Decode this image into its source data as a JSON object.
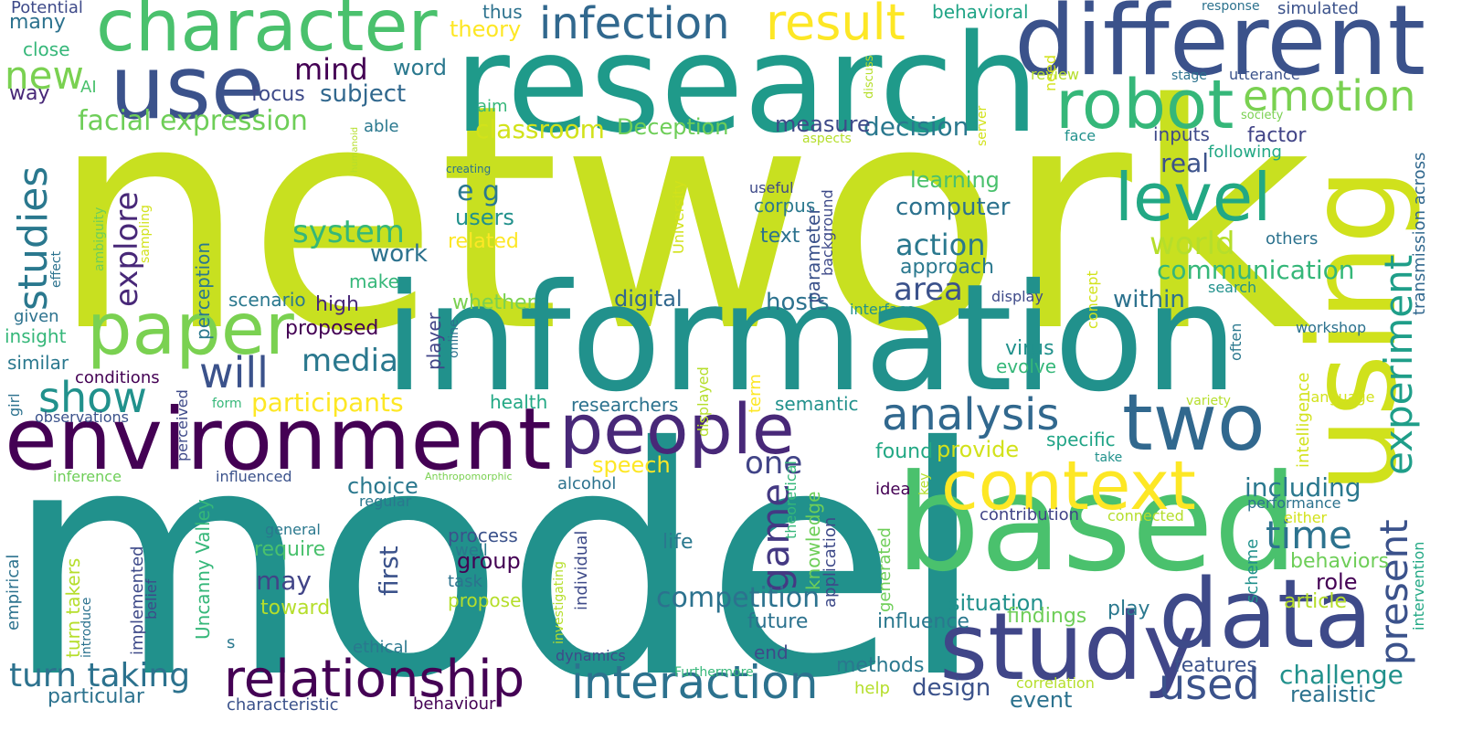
{
  "words": [
    {
      "text": "network",
      "color": "#c8e020"
    },
    {
      "text": "model",
      "color": "#21918c"
    },
    {
      "text": "research",
      "color": "#1f9a8a"
    },
    {
      "text": "information",
      "color": "#21918c"
    },
    {
      "text": "using",
      "color": "#d0e11c"
    },
    {
      "text": "different",
      "color": "#3b528b"
    },
    {
      "text": "based",
      "color": "#4ac16d"
    },
    {
      "text": "study",
      "color": "#404688"
    },
    {
      "text": "data",
      "color": "#3e4a89"
    },
    {
      "text": "environment",
      "color": "#440154"
    },
    {
      "text": "character",
      "color": "#4ac16d"
    },
    {
      "text": "use",
      "color": "#3b528b"
    },
    {
      "text": "people",
      "color": "#482878"
    },
    {
      "text": "two",
      "color": "#31688e"
    },
    {
      "text": "context",
      "color": "#fde725"
    },
    {
      "text": "robot",
      "color": "#35b779"
    },
    {
      "text": "paper",
      "color": "#7ad151"
    },
    {
      "text": "relationship",
      "color": "#440154"
    },
    {
      "text": "interaction",
      "color": "#2c728e"
    },
    {
      "text": "level",
      "color": "#22a884"
    },
    {
      "text": "infection",
      "color": "#31688e"
    },
    {
      "text": "result",
      "color": "#fde725"
    },
    {
      "text": "emotion",
      "color": "#7ad151"
    },
    {
      "text": "analysis",
      "color": "#31688e"
    },
    {
      "text": "studies",
      "color": "#2a788e"
    },
    {
      "text": "experiment",
      "color": "#1f9e89"
    },
    {
      "text": "present",
      "color": "#3b528b"
    },
    {
      "text": "used",
      "color": "#3b528b"
    },
    {
      "text": "show",
      "color": "#21918c"
    },
    {
      "text": "will",
      "color": "#3b528b"
    },
    {
      "text": "new",
      "color": "#7ad151"
    },
    {
      "text": "turn taking",
      "color": "#2c728e"
    },
    {
      "text": "time",
      "color": "#2c728e"
    },
    {
      "text": "facial expression",
      "color": "#6ece58"
    },
    {
      "text": "game",
      "color": "#443983"
    },
    {
      "text": "media",
      "color": "#2a788e"
    },
    {
      "text": "participants",
      "color": "#fde725"
    },
    {
      "text": "system",
      "color": "#35b779"
    },
    {
      "text": "mind",
      "color": "#440154"
    },
    {
      "text": "competition",
      "color": "#2c728e"
    },
    {
      "text": "action",
      "color": "#2a788e"
    },
    {
      "text": "world",
      "color": "#b5de2b"
    },
    {
      "text": "communication",
      "color": "#35b779"
    },
    {
      "text": "including",
      "color": "#2a788e"
    },
    {
      "text": "challenge",
      "color": "#21918c"
    },
    {
      "text": "design",
      "color": "#3b528b"
    },
    {
      "text": "explore",
      "color": "#482878"
    },
    {
      "text": "one",
      "color": "#414487"
    },
    {
      "text": "area",
      "color": "#3b528b"
    },
    {
      "text": "classroom",
      "color": "#d2e21b"
    },
    {
      "text": "Deception",
      "color": "#6ece58"
    },
    {
      "text": "decision",
      "color": "#2a788e"
    },
    {
      "text": "subject",
      "color": "#31688e"
    },
    {
      "text": "focus",
      "color": "#3e4a89"
    },
    {
      "text": "word",
      "color": "#2a788e"
    },
    {
      "text": "theory",
      "color": "#fde725"
    },
    {
      "text": "thus",
      "color": "#2c728e"
    },
    {
      "text": "behavioral",
      "color": "#20a486"
    },
    {
      "text": "Potential",
      "color": "#3e4a89"
    },
    {
      "text": "many",
      "color": "#2c728e"
    },
    {
      "text": "close",
      "color": "#35b779"
    },
    {
      "text": "AI",
      "color": "#4ac16d"
    },
    {
      "text": "way",
      "color": "#482878"
    },
    {
      "text": "aim",
      "color": "#35b779"
    },
    {
      "text": "able",
      "color": "#2a788e"
    },
    {
      "text": "measure",
      "color": "#3e4a89"
    },
    {
      "text": "e g",
      "color": "#2a788e"
    },
    {
      "text": "users",
      "color": "#21918c"
    },
    {
      "text": "related",
      "color": "#fde725"
    },
    {
      "text": "real",
      "color": "#3b528b"
    },
    {
      "text": "learning",
      "color": "#4ac16d"
    },
    {
      "text": "computer",
      "color": "#2c728e"
    },
    {
      "text": "approach",
      "color": "#2a788e"
    },
    {
      "text": "work",
      "color": "#2c728e"
    },
    {
      "text": "make",
      "color": "#35b779"
    },
    {
      "text": "scenario",
      "color": "#2a788e"
    },
    {
      "text": "high",
      "color": "#482878"
    },
    {
      "text": "proposed",
      "color": "#440154"
    },
    {
      "text": "whether",
      "color": "#7ad151"
    },
    {
      "text": "digital",
      "color": "#31688e"
    },
    {
      "text": "hosts",
      "color": "#2c728e"
    },
    {
      "text": "within",
      "color": "#2c728e"
    },
    {
      "text": "virus",
      "color": "#21918c"
    },
    {
      "text": "evolve",
      "color": "#35b779"
    },
    {
      "text": "health",
      "color": "#22a884"
    },
    {
      "text": "researchers",
      "color": "#2c728e"
    },
    {
      "text": "semantic",
      "color": "#21918c"
    },
    {
      "text": "found",
      "color": "#22a884"
    },
    {
      "text": "provide",
      "color": "#d2e21b"
    },
    {
      "text": "specific",
      "color": "#20a486"
    },
    {
      "text": "speech",
      "color": "#fde725"
    },
    {
      "text": "choice",
      "color": "#2a788e"
    },
    {
      "text": "first",
      "color": "#3b528b"
    },
    {
      "text": "may",
      "color": "#414487"
    },
    {
      "text": "require",
      "color": "#4ac16d"
    },
    {
      "text": "toward",
      "color": "#b5de2b"
    },
    {
      "text": "general",
      "color": "#2a788e"
    },
    {
      "text": "process",
      "color": "#3b528b"
    },
    {
      "text": "well",
      "color": "#2a788e"
    },
    {
      "text": "group",
      "color": "#440154"
    },
    {
      "text": "task",
      "color": "#2c728e"
    },
    {
      "text": "propose",
      "color": "#b5de2b"
    },
    {
      "text": "life",
      "color": "#2a788e"
    },
    {
      "text": "future",
      "color": "#2c728e"
    },
    {
      "text": "end",
      "color": "#3e4a89"
    },
    {
      "text": "methods",
      "color": "#2a788e"
    },
    {
      "text": "help",
      "color": "#b5de2b"
    },
    {
      "text": "situation",
      "color": "#21918c"
    },
    {
      "text": "influence",
      "color": "#2a788e"
    },
    {
      "text": "findings",
      "color": "#6ece58"
    },
    {
      "text": "play",
      "color": "#2a788e"
    },
    {
      "text": "role",
      "color": "#440154"
    },
    {
      "text": "behaviors",
      "color": "#6ece58"
    },
    {
      "text": "article",
      "color": "#b5de2b"
    },
    {
      "text": "features",
      "color": "#3b528b"
    },
    {
      "text": "event",
      "color": "#2c728e"
    },
    {
      "text": "realistic",
      "color": "#2c728e"
    },
    {
      "text": "correlation",
      "color": "#b5de2b"
    },
    {
      "text": "contribution",
      "color": "#414487"
    },
    {
      "text": "connected",
      "color": "#b5de2b"
    },
    {
      "text": "performance",
      "color": "#2c728e"
    },
    {
      "text": "either",
      "color": "#d2e21b"
    },
    {
      "text": "idea",
      "color": "#440154"
    },
    {
      "text": "key",
      "color": "#b5de2b"
    },
    {
      "text": "particular",
      "color": "#2c728e"
    },
    {
      "text": "characteristic",
      "color": "#3b528b"
    },
    {
      "text": "behaviour",
      "color": "#440154"
    },
    {
      "text": "ethical",
      "color": "#2a788e"
    },
    {
      "text": "dynamics",
      "color": "#3e4a89"
    },
    {
      "text": "Furthermore",
      "color": "#35b779"
    },
    {
      "text": "s",
      "color": "#2a788e"
    },
    {
      "text": "alcohol",
      "color": "#2c728e"
    },
    {
      "text": "given",
      "color": "#2c728e"
    },
    {
      "text": "insight",
      "color": "#35b779"
    },
    {
      "text": "similar",
      "color": "#2a788e"
    },
    {
      "text": "conditions",
      "color": "#440154"
    },
    {
      "text": "girl",
      "color": "#2c728e"
    },
    {
      "text": "observations",
      "color": "#3b528b"
    },
    {
      "text": "form",
      "color": "#35b779"
    },
    {
      "text": "inference",
      "color": "#6ece58"
    },
    {
      "text": "influenced",
      "color": "#3b528b"
    },
    {
      "text": "Anthropomorphic",
      "color": "#7ad151"
    },
    {
      "text": "regular",
      "color": "#2a788e"
    },
    {
      "text": "creating",
      "color": "#2c728e"
    },
    {
      "text": "useful",
      "color": "#3e4a89"
    },
    {
      "text": "corpus",
      "color": "#2a788e"
    },
    {
      "text": "text",
      "color": "#2c728e"
    },
    {
      "text": "inputs",
      "color": "#3e4a89"
    },
    {
      "text": "factor",
      "color": "#414487"
    },
    {
      "text": "following",
      "color": "#22a884"
    },
    {
      "text": "face",
      "color": "#21918c"
    },
    {
      "text": "aspects",
      "color": "#b5de2b"
    },
    {
      "text": "others",
      "color": "#2c728e"
    },
    {
      "text": "display",
      "color": "#3e4a89"
    },
    {
      "text": "interface",
      "color": "#21918c"
    },
    {
      "text": "search",
      "color": "#21918c"
    },
    {
      "text": "workshop",
      "color": "#2c728e"
    },
    {
      "text": "variety",
      "color": "#b5de2b"
    },
    {
      "text": "language",
      "color": "#d2e21b"
    },
    {
      "text": "take",
      "color": "#21918c"
    },
    {
      "text": "review",
      "color": "#b5de2b"
    },
    {
      "text": "stage",
      "color": "#2c728e"
    },
    {
      "text": "utterance",
      "color": "#3b528b"
    },
    {
      "text": "society",
      "color": "#7ad151"
    },
    {
      "text": "response",
      "color": "#2c728e"
    },
    {
      "text": "simulated",
      "color": "#3b528b"
    },
    {
      "text": "humanoid",
      "color": "#b5de2b"
    },
    {
      "text": "discuss",
      "color": "#b5de2b"
    },
    {
      "text": "server",
      "color": "#d2e21b"
    },
    {
      "text": "need",
      "color": "#d2e21b"
    },
    {
      "text": "University",
      "color": "#d2e21b"
    },
    {
      "text": "background",
      "color": "#3e4a89"
    },
    {
      "text": "parameter",
      "color": "#3b528b"
    },
    {
      "text": "perception",
      "color": "#2a788e"
    },
    {
      "text": "Uncanny Valley",
      "color": "#35b779"
    },
    {
      "text": "perceived",
      "color": "#3e4a89"
    },
    {
      "text": "sampling",
      "color": "#d2e21b"
    },
    {
      "text": "ambiguity",
      "color": "#6ece58"
    },
    {
      "text": "effect",
      "color": "#2c728e"
    },
    {
      "text": "empirical",
      "color": "#2c728e"
    },
    {
      "text": "turn takers",
      "color": "#b5de2b"
    },
    {
      "text": "introduce",
      "color": "#2c728e"
    },
    {
      "text": "implemented",
      "color": "#3e4a89"
    },
    {
      "text": "belief",
      "color": "#3e4a89"
    },
    {
      "text": "player",
      "color": "#414487"
    },
    {
      "text": "online",
      "color": "#2c728e"
    },
    {
      "text": "investigating",
      "color": "#b5de2b"
    },
    {
      "text": "individual",
      "color": "#3e4a89"
    },
    {
      "text": "displayed",
      "color": "#b5de2b"
    },
    {
      "text": "term",
      "color": "#fde725"
    },
    {
      "text": "theoretical",
      "color": "#35b779"
    },
    {
      "text": "knowledge",
      "color": "#6ece58"
    },
    {
      "text": "application",
      "color": "#3e4a89"
    },
    {
      "text": "generated",
      "color": "#6ece58"
    },
    {
      "text": "concept",
      "color": "#d2e21b"
    },
    {
      "text": "intelligence",
      "color": "#d2e21b"
    },
    {
      "text": "often",
      "color": "#2a788e"
    },
    {
      "text": "scheme",
      "color": "#21918c"
    },
    {
      "text": "transmission across",
      "color": "#31688e"
    },
    {
      "text": "intervention",
      "color": "#22a884"
    }
  ]
}
